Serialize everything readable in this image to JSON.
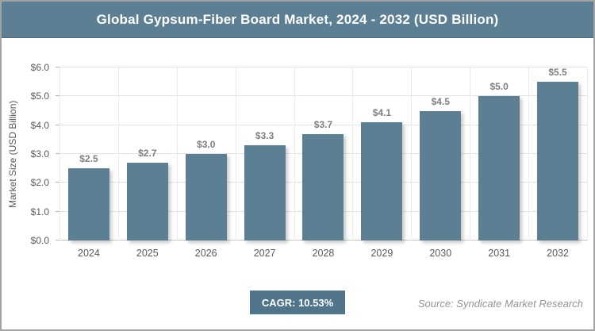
{
  "header": {
    "title": "Global Gypsum-Fiber Board Market, 2024 - 2032 (USD Billion)"
  },
  "chart_data": {
    "type": "bar",
    "title": "Global Gypsum-Fiber Board Market, 2024 - 2032 (USD Billion)",
    "categories": [
      "2024",
      "2025",
      "2026",
      "2027",
      "2028",
      "2029",
      "2030",
      "2031",
      "2032"
    ],
    "values": [
      2.5,
      2.7,
      3.0,
      3.3,
      3.7,
      4.1,
      4.5,
      5.0,
      5.5
    ],
    "value_labels": [
      "$2.5",
      "$2.7",
      "$3.0",
      "$3.3",
      "$3.7",
      "$4.1",
      "$4.5",
      "$5.0",
      "$5.5"
    ],
    "xlabel": "",
    "ylabel": "Market Size (USD Billion)",
    "ylim": [
      0,
      6
    ],
    "ytick_step": 1,
    "ytick_labels": [
      "$0.0",
      "$1.0",
      "$2.0",
      "$3.0",
      "$4.0",
      "$5.0",
      "$6.0"
    ],
    "grid": true,
    "legend": false,
    "bar_color": "#5d7f93"
  },
  "footer": {
    "cagr_label": "CAGR: 10.53%",
    "source": "Source: Syndicate Market Research"
  },
  "colors": {
    "header_bg": "#5d7f93",
    "bar": "#5d7f93",
    "cagr_badge_bg": "#50758a",
    "axis_text": "#595959",
    "value_label_text": "#7f7f7f",
    "gridline": "#e3e3e3",
    "source_text": "#8f959b",
    "title_text": "#ffffff",
    "page_border": "#a3a3a3"
  }
}
